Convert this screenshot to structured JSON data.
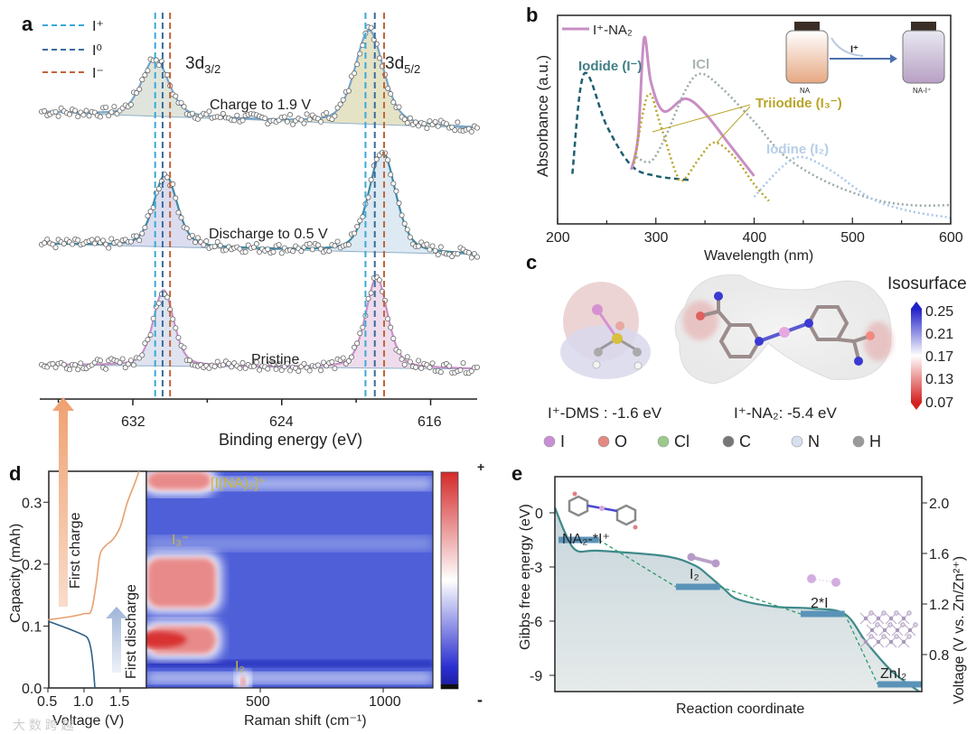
{
  "panels": {
    "a": "a",
    "b": "b",
    "c": "c",
    "d": "d",
    "e": "e"
  },
  "chart_data": [
    {
      "panel": "a",
      "type": "scatter",
      "xlabel": "Binding energy (eV)",
      "xlim": [
        637,
        613.5
      ],
      "x_ticks": [
        632,
        624,
        616
      ],
      "x_minor_ticks": [
        636,
        628,
        620
      ],
      "ylim": [
        0,
        10
      ],
      "peak_labels": [
        {
          "main": "3d",
          "sub": "3/2"
        },
        {
          "main": "3d",
          "sub": "5/2"
        }
      ],
      "reference_lines": [
        {
          "label": "I⁺",
          "color": "#3aa9d8",
          "positions": [
            630.8,
            619.5
          ]
        },
        {
          "label": "I⁰",
          "color": "#3a6c9e",
          "positions": [
            630.4,
            619.0
          ]
        },
        {
          "label": "I⁻",
          "color": "#c0653a",
          "positions": [
            630.0,
            618.5
          ]
        }
      ],
      "series": [
        {
          "name": "Charge to 1.9 V",
          "baseline": [
            7.4,
            6.95
          ],
          "line_color": "#7aa6c8",
          "peaks": [
            {
              "center": 630.8,
              "height": 1.6,
              "fwhm": 1.7,
              "fill": "#dfe5dc"
            },
            {
              "center": 619.3,
              "height": 2.6,
              "fwhm": 1.8,
              "fill": "#e5e3c6"
            }
          ]
        },
        {
          "name": "Discharge to 0.5 V",
          "baseline": [
            3.75,
            3.45
          ],
          "line_color": "#3f8aa4",
          "peaks": [
            {
              "center": 630.25,
              "height": 2.0,
              "fwhm": 1.5,
              "fill": "#dcdcf0"
            },
            {
              "center": 618.6,
              "height": 2.8,
              "fwhm": 1.7,
              "fill": "#dde9f3"
            }
          ]
        },
        {
          "name": "Pristine",
          "baseline": [
            0.4,
            0.28
          ],
          "line_color": "#c792c8",
          "peaks": [
            {
              "center": 630.35,
              "height": 2.1,
              "fwhm": 1.3,
              "fill": "#dfe3f0"
            },
            {
              "center": 618.9,
              "height": 2.5,
              "fwhm": 1.4,
              "fill": "#eedcec"
            }
          ]
        }
      ]
    },
    {
      "panel": "b",
      "type": "line",
      "xlabel": "Wavelength (nm)",
      "ylabel": "Absorbance (a.u.)",
      "xlim": [
        200,
        600
      ],
      "x_ticks": [
        200,
        300,
        400,
        500,
        600
      ],
      "ylim": [
        0,
        1
      ],
      "legend": {
        "label": "I⁺-NA₂",
        "placement": "top-left"
      },
      "series": [
        {
          "name": "Iodide (I⁻)",
          "color": "#1f5f6e",
          "style": "dashed",
          "x": [
            215,
            227,
            250,
            275,
            300,
            335
          ],
          "y": [
            0.24,
            0.72,
            0.47,
            0.28,
            0.23,
            0.21
          ]
        },
        {
          "name": "I⁺-NA₂",
          "color": "#c88ec4",
          "style": "solid",
          "x": [
            275,
            282,
            288,
            295,
            308,
            330,
            350,
            375,
            400
          ],
          "y": [
            0.26,
            0.42,
            0.89,
            0.68,
            0.54,
            0.6,
            0.53,
            0.38,
            0.23
          ]
        },
        {
          "name": "Triiodide (I₃⁻)",
          "color": "#b9a42a",
          "style": "dotted",
          "x": [
            278,
            292,
            305,
            320,
            328,
            345,
            360,
            380,
            400,
            415
          ],
          "y": [
            0.29,
            0.62,
            0.47,
            0.25,
            0.21,
            0.32,
            0.39,
            0.32,
            0.19,
            0.11
          ]
        },
        {
          "name": "ICl",
          "color": "#9aa8a8",
          "style": "dotted",
          "x": [
            280,
            295,
            310,
            330,
            345,
            365,
            400,
            430,
            470,
            520,
            560,
            600
          ],
          "y": [
            0.32,
            0.3,
            0.42,
            0.64,
            0.72,
            0.66,
            0.49,
            0.33,
            0.21,
            0.12,
            0.09,
            0.09
          ]
        },
        {
          "name": "Iodine (I₂)",
          "color": "#a9c6e6",
          "style": "dotted",
          "x": [
            400,
            430,
            450,
            480,
            520,
            560,
            600
          ],
          "y": [
            0.13,
            0.28,
            0.32,
            0.25,
            0.12,
            0.06,
            0.03
          ]
        }
      ],
      "inset": {
        "vial_left": "NA",
        "vial_right": "NA-I⁺",
        "arrow_label": "I⁺"
      }
    },
    {
      "panel": "d",
      "type": "heatmap",
      "left_plot": {
        "xlabel": "Voltage (V)",
        "ylabel": "Capacity (mAh)",
        "xlim": [
          0.5,
          1.85
        ],
        "ylim": [
          0,
          0.35
        ],
        "x_ticks": [
          "0.5",
          "1.0",
          "1.5"
        ],
        "x_tick_values": [
          0.5,
          1.0,
          1.5
        ],
        "y_ticks": [
          "0.0",
          "0.1",
          "0.2",
          "0.3"
        ],
        "y_tick_values": [
          0,
          0.1,
          0.2,
          0.3
        ],
        "series": [
          {
            "name": "First charge",
            "color": "#e8a070",
            "x": [
              0.5,
              0.8,
              1.0,
              1.1,
              1.17,
              1.22,
              1.3,
              1.4,
              1.5,
              1.6,
              1.7,
              1.76
            ],
            "y": [
              0.11,
              0.115,
              0.12,
              0.125,
              0.17,
              0.215,
              0.23,
              0.24,
              0.26,
              0.3,
              0.33,
              0.35
            ]
          },
          {
            "name": "First discharge",
            "color": "#2f5f86",
            "x": [
              0.5,
              0.8,
              1.0,
              1.06,
              1.1,
              1.13,
              1.15
            ],
            "y": [
              0.108,
              0.095,
              0.085,
              0.078,
              0.06,
              0.03,
              0.0
            ]
          }
        ]
      },
      "xlabel": "Raman shift (cm⁻¹)",
      "xlim": [
        37,
        1202
      ],
      "x_ticks": [
        "500",
        "1000"
      ],
      "x_tick_values": [
        500,
        1000
      ],
      "colorbar": {
        "max_label": "+",
        "min_label": "-",
        "colors": [
          "#111111",
          "#2222cc",
          "#ffffff",
          "#d42a2a"
        ]
      },
      "features": [
        {
          "label": "[I(NA)₂]⁺",
          "raman": [
            40,
            300
          ],
          "capacity": [
            0.32,
            0.35
          ],
          "sign": "+"
        },
        {
          "label": "I₃⁻",
          "raman": [
            40,
            320
          ],
          "capacity": [
            0.13,
            0.21
          ],
          "sign": "+"
        },
        {
          "label": "",
          "raman": [
            40,
            320
          ],
          "capacity": [
            0.055,
            0.1
          ],
          "sign": "+"
        },
        {
          "label": "I₂",
          "raman": [
            420,
            440
          ],
          "capacity": [
            0,
            0.02
          ],
          "sign": "+"
        }
      ]
    },
    {
      "panel": "e",
      "type": "line",
      "xlabel": "Reaction coordinate",
      "ylabel": "Gibbs free energy (eV)",
      "y2label": "Voltage (V vs. Zn/Zn²⁺)",
      "ylim": [
        -10,
        2
      ],
      "y_ticks": [
        "0",
        "-3",
        "-6",
        "-9"
      ],
      "y_tick_values": [
        0,
        -3,
        -6,
        -9
      ],
      "y2_ticks": [
        "2.0",
        "1.6",
        "1.2",
        "0.8"
      ],
      "y2_tick_values": [
        2.0,
        1.6,
        1.2,
        0.8
      ],
      "levels": [
        {
          "label": "NA₂-*I⁺",
          "G": -1.5,
          "x": [
            0.01,
            0.12
          ]
        },
        {
          "label": "I₂",
          "G": -4.1,
          "x": [
            0.33,
            0.45
          ]
        },
        {
          "label": "2*I",
          "G": -5.6,
          "x": [
            0.67,
            0.79
          ]
        },
        {
          "label": "ZnI₂",
          "G": -9.5,
          "x": [
            0.88,
            1.0
          ]
        }
      ],
      "voltage_curve": {
        "x": [
          0,
          0.03,
          0.06,
          0.12,
          0.3,
          0.38,
          0.42,
          0.46,
          0.5,
          0.6,
          0.7,
          0.79,
          0.85,
          0.92,
          1.0
        ],
        "G": [
          0.3,
          -1.2,
          -2.1,
          -2.1,
          -2.4,
          -2.9,
          -3.5,
          -4.2,
          -4.8,
          -5.2,
          -5.3,
          -5.6,
          -7.2,
          -8.8,
          -10
        ]
      },
      "colors": {
        "level": "#5a93b8",
        "curve": "#3f8a8a",
        "dashed": "#2a9a6a"
      }
    }
  ],
  "panel_c": {
    "isosurface_title": "Isosurface",
    "isosurface_ticks": [
      "0.25",
      "0.21",
      "0.17",
      "0.13",
      "0.07"
    ],
    "labels": [
      "I⁺-DMS : -1.6 eV",
      "I⁺-NA₂: -5.4 eV"
    ],
    "atoms": [
      {
        "symbol": "I",
        "color": "#c98fd6"
      },
      {
        "symbol": "O",
        "color": "#e28a82"
      },
      {
        "symbol": "Cl",
        "color": "#9cc98c"
      },
      {
        "symbol": "C",
        "color": "#777777"
      },
      {
        "symbol": "N",
        "color": "#d8e0f0"
      },
      {
        "symbol": "H",
        "color": "#9a9a9a"
      }
    ]
  },
  "watermark": "大 数 跨 越"
}
